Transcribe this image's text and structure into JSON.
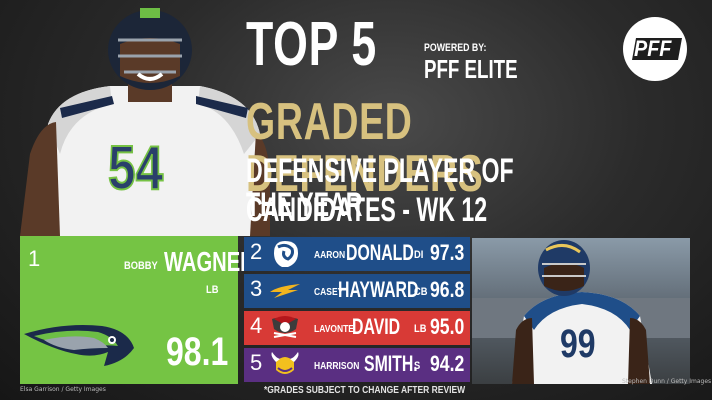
{
  "headline": {
    "top5": "TOP 5",
    "powered_by": "POWERED BY:",
    "brand": "PFF ELITE",
    "graded": "GRADED DEFENDERS",
    "line1": "DEFENSIVE PLAYER OF THE YEAR",
    "line2": "CANDIDATES - WK 12"
  },
  "logo": {
    "text": "PFF",
    "icon": "pff-logo"
  },
  "first_place": {
    "rank": "1",
    "first_name": "BOBBY",
    "last_name": "WAGNER",
    "position": "LB",
    "grade": "98.1",
    "team_logo": "seahawks-logo",
    "color": "#75c444"
  },
  "rows": [
    {
      "rank": "2",
      "first_name": "AARON",
      "last_name": "DONALD",
      "position": "DI",
      "grade": "97.3",
      "team_logo": "rams-logo",
      "color": "#1f4e89"
    },
    {
      "rank": "3",
      "first_name": "CASEY",
      "last_name": "HAYWARD",
      "position": "CB",
      "grade": "96.8",
      "team_logo": "chargers-logo",
      "color": "#1f4e89"
    },
    {
      "rank": "4",
      "first_name": "LAVONTE",
      "last_name": "DAVID",
      "position": "LB",
      "grade": "95.0",
      "team_logo": "buccaneers-logo",
      "color": "#d83a36"
    },
    {
      "rank": "5",
      "first_name": "HARRISON",
      "last_name": "SMITH.",
      "position": "S",
      "grade": "94.2",
      "team_logo": "vikings-logo",
      "color": "#5a2f82"
    }
  ],
  "photos": {
    "left_jersey_number": "54",
    "right_jersey_number": "99"
  },
  "credits": {
    "left": "Elsa Garrison / Getty Images",
    "right": "Stephen Dunn / Getty Images"
  },
  "footnote": "*GRADES SUBJECT TO CHANGE AFTER REVIEW"
}
